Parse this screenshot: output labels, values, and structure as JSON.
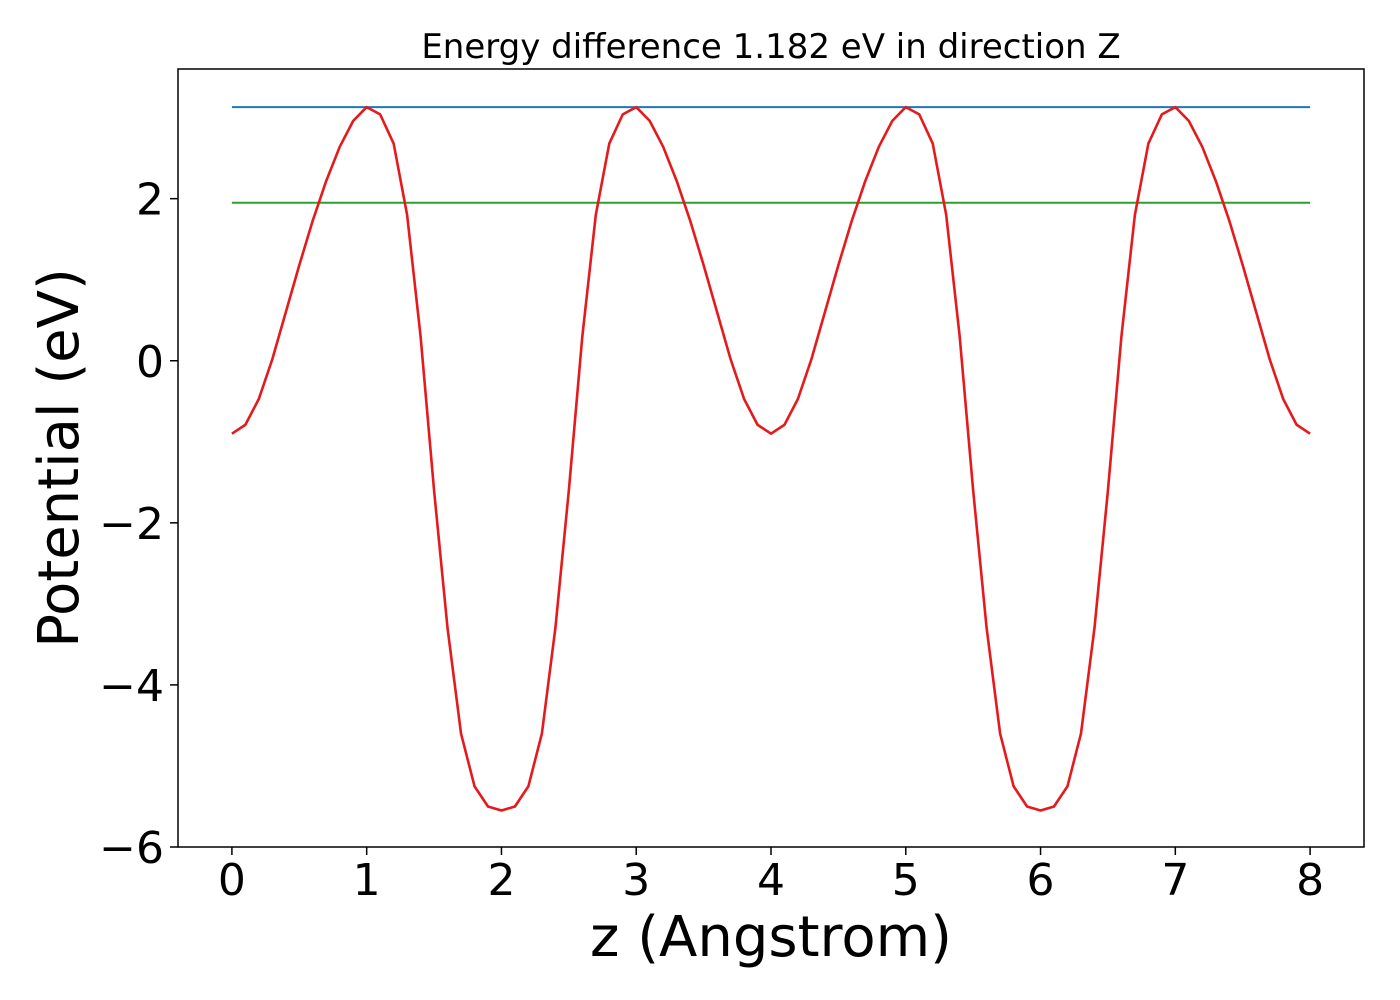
{
  "chart_data": {
    "type": "line",
    "title": "Energy difference 1.182 eV in direction Z",
    "xlabel": "z (Angstrom)",
    "ylabel": "Potential (eV)",
    "xlim": [
      -0.4,
      8.4
    ],
    "ylim": [
      -6.0,
      3.6
    ],
    "xticks": [
      0,
      1,
      2,
      3,
      4,
      5,
      6,
      7,
      8
    ],
    "yticks": [
      -6,
      -4,
      -2,
      0,
      2
    ],
    "xtick_labels": [
      "0",
      "1",
      "2",
      "3",
      "4",
      "5",
      "6",
      "7",
      "8"
    ],
    "ytick_labels": [
      "−6",
      "−4",
      "−2",
      "0",
      "2"
    ],
    "grid": false,
    "series": [
      {
        "color": "#1f77b4",
        "x": [
          0,
          8
        ],
        "y": [
          3.13,
          3.13
        ]
      },
      {
        "color": "#2ca02c",
        "x": [
          0,
          8
        ],
        "y": [
          1.95,
          1.95
        ]
      },
      {
        "color": "#e41a1c",
        "x": [
          0,
          0.1,
          0.2,
          0.3,
          0.4,
          0.5,
          0.6,
          0.7,
          0.8,
          0.9,
          1.0,
          1.1,
          1.2,
          1.3,
          1.4,
          1.5,
          1.6,
          1.7,
          1.8,
          1.9,
          2.0,
          2.1,
          2.2,
          2.3,
          2.4,
          2.5,
          2.6,
          2.7,
          2.8,
          2.9,
          3.0,
          3.1,
          3.2,
          3.3,
          3.4,
          3.5,
          3.6,
          3.7,
          3.8,
          3.9,
          4.0,
          4.1,
          4.2,
          4.3,
          4.4,
          4.5,
          4.6,
          4.7,
          4.8,
          4.9,
          5.0,
          5.1,
          5.2,
          5.3,
          5.4,
          5.5,
          5.6,
          5.7,
          5.8,
          5.9,
          6.0,
          6.1,
          6.2,
          6.3,
          6.4,
          6.5,
          6.6,
          6.7,
          6.8,
          6.9,
          7.0,
          7.1,
          7.2,
          7.3,
          7.4,
          7.5,
          7.6,
          7.7,
          7.8,
          7.9,
          8.0
        ],
        "y": [
          -0.9,
          -0.79,
          -0.47,
          0.02,
          0.6,
          1.18,
          1.73,
          2.22,
          2.64,
          2.96,
          3.13,
          3.04,
          2.68,
          1.8,
          0.3,
          -1.6,
          -3.3,
          -4.6,
          -5.25,
          -5.5,
          -5.55,
          -5.5,
          -5.25,
          -4.6,
          -3.3,
          -1.6,
          0.3,
          1.8,
          2.68,
          3.04,
          3.13,
          2.96,
          2.64,
          2.22,
          1.73,
          1.18,
          0.6,
          0.02,
          -0.47,
          -0.79,
          -0.9,
          -0.79,
          -0.47,
          0.02,
          0.6,
          1.18,
          1.73,
          2.22,
          2.64,
          2.96,
          3.13,
          3.04,
          2.68,
          1.8,
          0.3,
          -1.6,
          -3.3,
          -4.6,
          -5.25,
          -5.5,
          -5.55,
          -5.5,
          -5.25,
          -4.6,
          -3.3,
          -1.6,
          0.3,
          1.8,
          2.68,
          3.04,
          3.13,
          2.96,
          2.64,
          2.22,
          1.73,
          1.18,
          0.6,
          0.02,
          -0.47,
          -0.79,
          -0.9
        ]
      }
    ]
  }
}
